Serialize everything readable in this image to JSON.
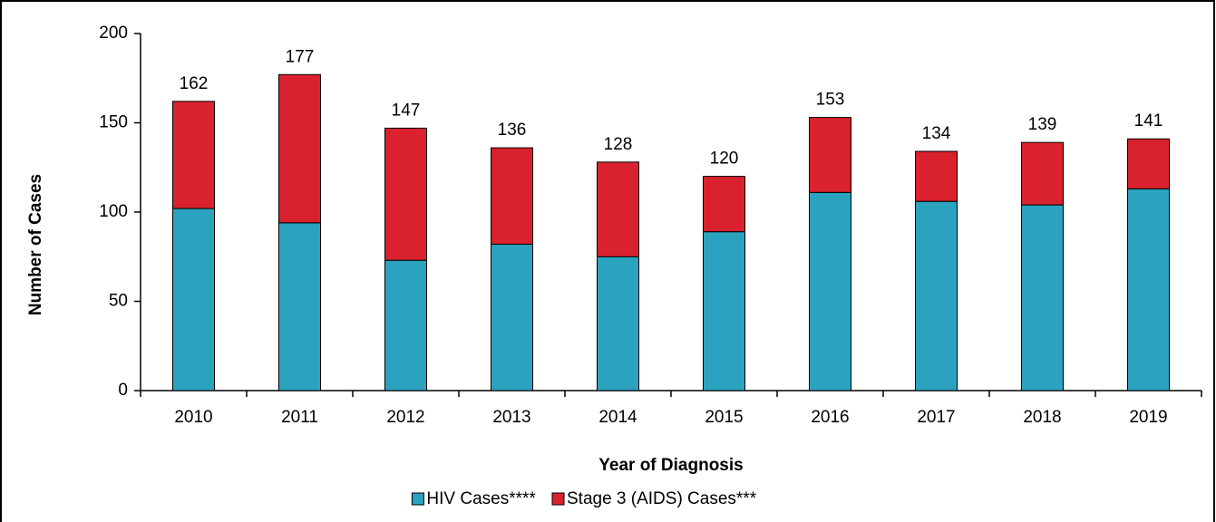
{
  "chart_data": {
    "type": "stacked_bar",
    "x_label": "Year of Diagnosis",
    "y_label": "Number of Cases",
    "categories": [
      "2010",
      "2011",
      "2012",
      "2013",
      "2014",
      "2015",
      "2016",
      "2017",
      "2018",
      "2019"
    ],
    "series": [
      {
        "name": "HIV Cases****",
        "color": "#2ba3bf",
        "values": [
          102,
          94,
          73,
          82,
          75,
          89,
          111,
          106,
          104,
          113
        ]
      },
      {
        "name": "Stage 3 (AIDS) Cases***",
        "color": "#d9222d",
        "values": [
          60,
          83,
          74,
          54,
          53,
          31,
          42,
          28,
          35,
          28
        ]
      }
    ],
    "totals": [
      162,
      177,
      147,
      136,
      128,
      120,
      153,
      134,
      139,
      141
    ],
    "ylim": [
      0,
      200
    ],
    "yticks": [
      0,
      50,
      100,
      150,
      200
    ],
    "grid": false
  }
}
